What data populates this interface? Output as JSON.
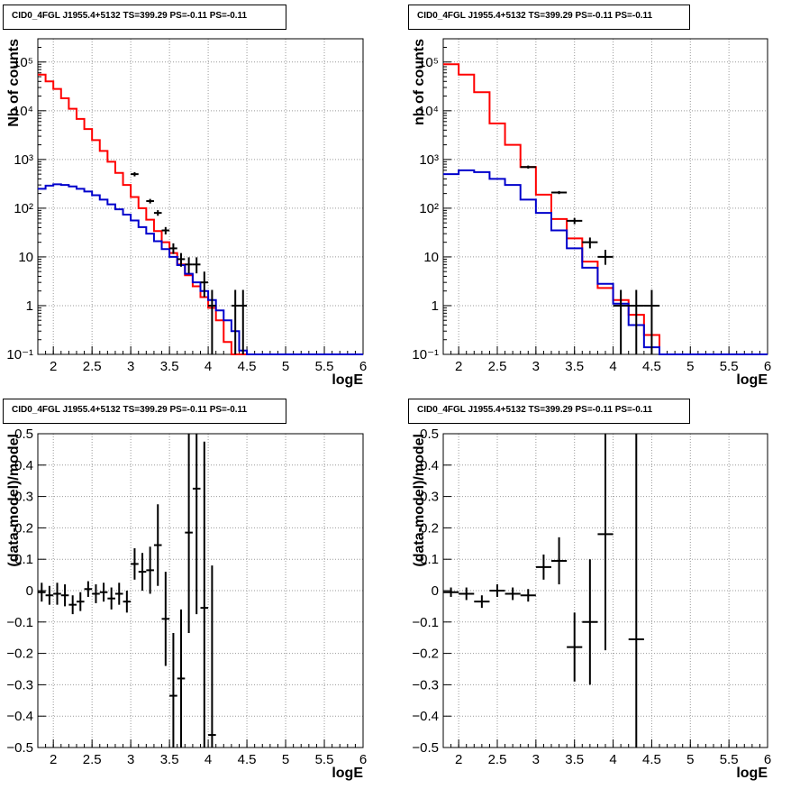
{
  "chart_data": [
    {
      "type": "line",
      "title": "CID0_4FGL J1955.4+5132 TS=399.29 PS=-0.11 PS=-0.11",
      "xlabel": "logE",
      "ylabel": "Nb of counts",
      "xlim": [
        1.8,
        6.0
      ],
      "ylim": [
        0.1,
        300000
      ],
      "yscale": "log",
      "grid": true,
      "x_ticks": [
        "2",
        "2.5",
        "3",
        "3.5",
        "4",
        "4.5",
        "5",
        "5.5",
        "6"
      ],
      "y_ticks": [
        {
          "v": 0.1,
          "label": "10⁻¹"
        },
        {
          "v": 1,
          "label": "1"
        },
        {
          "v": 10,
          "label": "10"
        },
        {
          "v": 100,
          "label": "10²"
        },
        {
          "v": 1000,
          "label": "10³"
        },
        {
          "v": 10000,
          "label": "10⁴"
        },
        {
          "v": 100000,
          "label": "10⁵"
        }
      ],
      "bin_width": 0.1,
      "bin_start": 1.8,
      "series": [
        {
          "role": "model-total",
          "color": "#ff0000",
          "values": [
            55000,
            40000,
            28000,
            18000,
            11000,
            6800,
            4200,
            2500,
            1500,
            900,
            530,
            300,
            170,
            100,
            58,
            34,
            20,
            12,
            7,
            4.2,
            2.5,
            1.5,
            0.9,
            0.5,
            0.18,
            0.1,
            0.1,
            0.1,
            0.1,
            0.1,
            0.1,
            0.1,
            0.1,
            0.1,
            0.1,
            0.1,
            0.1,
            0.1,
            0.1,
            0.1,
            0.1,
            0.1
          ]
        },
        {
          "role": "model-source",
          "color": "#0000cc",
          "values": [
            250,
            290,
            310,
            300,
            280,
            250,
            220,
            185,
            150,
            120,
            95,
            74,
            56,
            41,
            30,
            21,
            14.5,
            10,
            6.8,
            4.5,
            3.0,
            2.0,
            1.3,
            0.8,
            0.5,
            0.3,
            0.12,
            0.1,
            0.1,
            0.1,
            0.1,
            0.1,
            0.1,
            0.1,
            0.1,
            0.1,
            0.1,
            0.1,
            0.1,
            0.1,
            0.1,
            0.1
          ]
        },
        {
          "role": "data",
          "color": "#000000",
          "points": [
            {
              "x": 3.05,
              "y": 500,
              "lo": 450,
              "hi": 550
            },
            {
              "x": 3.25,
              "y": 140,
              "lo": 125,
              "hi": 155
            },
            {
              "x": 3.35,
              "y": 80,
              "lo": 70,
              "hi": 91
            },
            {
              "x": 3.45,
              "y": 35,
              "lo": 29,
              "hi": 41
            },
            {
              "x": 3.55,
              "y": 15,
              "lo": 11.5,
              "hi": 19
            },
            {
              "x": 3.65,
              "y": 9,
              "lo": 6.3,
              "hi": 12
            },
            {
              "x": 3.75,
              "y": 7,
              "lo": 4.6,
              "hi": 9.8
            },
            {
              "x": 3.85,
              "y": 7,
              "lo": 4.6,
              "hi": 9.8
            },
            {
              "x": 3.95,
              "y": 3,
              "lo": 1.5,
              "hi": 5
            },
            {
              "x": 4.05,
              "y": 1,
              "lo": 0.1,
              "hi": 2.1
            },
            {
              "x": 4.35,
              "y": 1,
              "lo": 0.1,
              "hi": 2.1
            },
            {
              "x": 4.45,
              "y": 1,
              "lo": 0.1,
              "hi": 2.1
            }
          ]
        }
      ]
    },
    {
      "type": "line",
      "title": "CID0_4FGL J1955.4+5132 TS=399.29 PS=-0.11 PS=-0.11",
      "xlabel": "logE",
      "ylabel": "nb of counts",
      "xlim": [
        1.8,
        6.0
      ],
      "ylim": [
        0.1,
        300000
      ],
      "yscale": "log",
      "grid": true,
      "x_ticks": [
        "2",
        "2.5",
        "3",
        "3.5",
        "4",
        "4.5",
        "5",
        "5.5",
        "6"
      ],
      "y_ticks": [
        {
          "v": 0.1,
          "label": "10⁻¹"
        },
        {
          "v": 1,
          "label": "1"
        },
        {
          "v": 10,
          "label": "10"
        },
        {
          "v": 100,
          "label": "10²"
        },
        {
          "v": 1000,
          "label": "10³"
        },
        {
          "v": 10000,
          "label": "10⁴"
        },
        {
          "v": 100000,
          "label": "10⁵"
        }
      ],
      "bin_width": 0.2,
      "bin_start": 1.8,
      "series": [
        {
          "role": "model-total",
          "color": "#ff0000",
          "values": [
            90000,
            55000,
            24000,
            5500,
            2000,
            700,
            190,
            60,
            24,
            8,
            2.3,
            1.3,
            0.65,
            0.25,
            0.1,
            0.1,
            0.1,
            0.1,
            0.1,
            0.1,
            0.1
          ]
        },
        {
          "role": "model-source",
          "color": "#0000cc",
          "values": [
            500,
            600,
            550,
            400,
            300,
            150,
            80,
            35,
            15,
            6,
            2.8,
            1.1,
            0.4,
            0.14,
            0.1,
            0.1,
            0.1,
            0.1,
            0.1,
            0.1,
            0.1
          ]
        },
        {
          "role": "data",
          "color": "#000000",
          "points": [
            {
              "x": 2.9,
              "y": 700,
              "lo": 650,
              "hi": 750
            },
            {
              "x": 3.3,
              "y": 210,
              "lo": 195,
              "hi": 225
            },
            {
              "x": 3.5,
              "y": 55,
              "lo": 47,
              "hi": 63
            },
            {
              "x": 3.7,
              "y": 20,
              "lo": 15,
              "hi": 25
            },
            {
              "x": 3.9,
              "y": 10,
              "lo": 6.9,
              "hi": 14
            },
            {
              "x": 4.1,
              "y": 1,
              "lo": 0.1,
              "hi": 2.1
            },
            {
              "x": 4.3,
              "y": 1,
              "lo": 0.1,
              "hi": 2.1
            },
            {
              "x": 4.5,
              "y": 1,
              "lo": 0.1,
              "hi": 2.1
            }
          ]
        }
      ]
    },
    {
      "type": "scatter",
      "title": "CID0_4FGL J1955.4+5132 TS=399.29 PS=-0.11 PS=-0.11",
      "xlabel": "logE",
      "ylabel": "(data-model)/model",
      "xlim": [
        1.8,
        6.0
      ],
      "ylim": [
        -0.5,
        0.5
      ],
      "grid": true,
      "x_ticks": [
        "2",
        "2.5",
        "3",
        "3.5",
        "4",
        "4.5",
        "5",
        "5.5",
        "6"
      ],
      "y_ticks": [
        "−0.5",
        "−0.4",
        "−0.3",
        "−0.2",
        "−0.1",
        "0",
        "0.1",
        "0.2",
        "0.3",
        "0.4",
        "0.5"
      ],
      "bin_width": 0.1,
      "points": [
        {
          "x": 1.85,
          "y": -0.005,
          "err": 0.03
        },
        {
          "x": 1.95,
          "y": -0.015,
          "err": 0.03
        },
        {
          "x": 2.05,
          "y": -0.01,
          "err": 0.035
        },
        {
          "x": 2.15,
          "y": -0.015,
          "err": 0.035
        },
        {
          "x": 2.25,
          "y": -0.045,
          "err": 0.03
        },
        {
          "x": 2.35,
          "y": -0.035,
          "err": 0.03
        },
        {
          "x": 2.45,
          "y": 0.005,
          "err": 0.025
        },
        {
          "x": 2.55,
          "y": -0.01,
          "err": 0.03
        },
        {
          "x": 2.65,
          "y": -0.005,
          "err": 0.03
        },
        {
          "x": 2.75,
          "y": -0.025,
          "err": 0.035
        },
        {
          "x": 2.85,
          "y": -0.01,
          "err": 0.035
        },
        {
          "x": 2.95,
          "y": -0.035,
          "err": 0.035
        },
        {
          "x": 3.05,
          "y": 0.085,
          "err": 0.05
        },
        {
          "x": 3.15,
          "y": 0.06,
          "err": 0.06
        },
        {
          "x": 3.25,
          "y": 0.065,
          "err": 0.075
        },
        {
          "x": 3.35,
          "y": 0.145,
          "err": 0.13
        },
        {
          "x": 3.45,
          "y": -0.09,
          "err": 0.15
        },
        {
          "x": 3.55,
          "y": -0.335,
          "err": 0.2
        },
        {
          "x": 3.65,
          "y": -0.28,
          "err": 0.22
        },
        {
          "x": 3.75,
          "y": 0.185,
          "err": 0.32
        },
        {
          "x": 3.85,
          "y": 0.325,
          "err": 0.4
        },
        {
          "x": 3.95,
          "y": -0.055,
          "err": 0.53
        },
        {
          "x": 4.05,
          "y": -0.46,
          "err": 0.54
        }
      ]
    },
    {
      "type": "scatter",
      "title": "CID0_4FGL J1955.4+5132 TS=399.29 PS=-0.11 PS=-0.11",
      "xlabel": "logE",
      "ylabel": "(data-model)/model",
      "xlim": [
        1.8,
        6.0
      ],
      "ylim": [
        -0.5,
        0.5
      ],
      "grid": true,
      "x_ticks": [
        "2",
        "2.5",
        "3",
        "3.5",
        "4",
        "4.5",
        "5",
        "5.5",
        "6"
      ],
      "y_ticks": [
        "−0.5",
        "−0.4",
        "−0.3",
        "−0.2",
        "−0.1",
        "0",
        "0.1",
        "0.2",
        "0.3",
        "0.4",
        "0.5"
      ],
      "bin_width": 0.2,
      "points": [
        {
          "x": 1.9,
          "y": -0.005,
          "err": 0.015
        },
        {
          "x": 2.1,
          "y": -0.01,
          "err": 0.02
        },
        {
          "x": 2.3,
          "y": -0.035,
          "err": 0.02
        },
        {
          "x": 2.5,
          "y": 0.0,
          "err": 0.02
        },
        {
          "x": 2.7,
          "y": -0.01,
          "err": 0.02
        },
        {
          "x": 2.9,
          "y": -0.015,
          "err": 0.02
        },
        {
          "x": 3.1,
          "y": 0.075,
          "err": 0.04
        },
        {
          "x": 3.3,
          "y": 0.095,
          "err": 0.075
        },
        {
          "x": 3.5,
          "y": -0.18,
          "err": 0.11
        },
        {
          "x": 3.7,
          "y": -0.1,
          "err": 0.2
        },
        {
          "x": 3.9,
          "y": 0.18,
          "err": 0.37
        },
        {
          "x": 4.3,
          "y": -0.155,
          "err": 0.7
        }
      ]
    }
  ]
}
